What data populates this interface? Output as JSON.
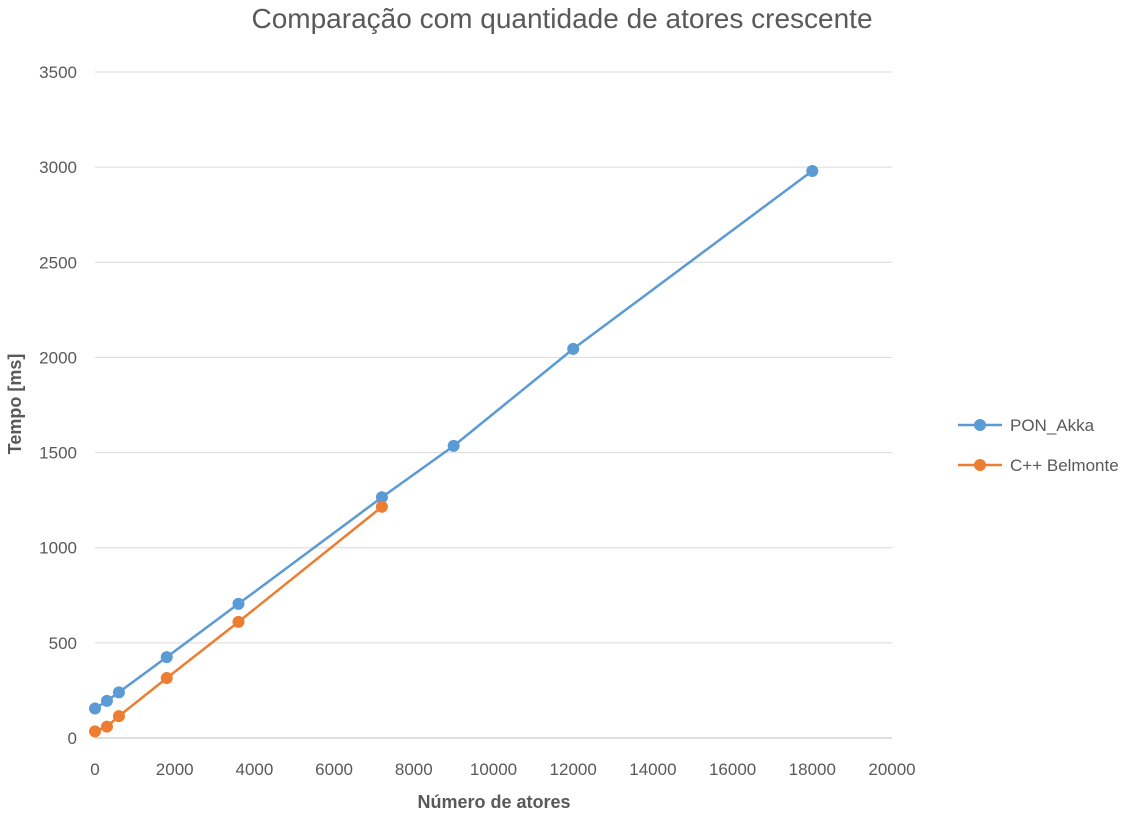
{
  "chart_data": {
    "type": "line",
    "title": "Comparação com quantidade de atores crescente",
    "xlabel": "Número de atores",
    "ylabel": "Tempo [ms]",
    "xlim": [
      0,
      20000
    ],
    "ylim": [
      0,
      3500
    ],
    "x_ticks": [
      "0",
      "2000",
      "4000",
      "6000",
      "8000",
      "10000",
      "12000",
      "14000",
      "16000",
      "18000",
      "20000"
    ],
    "y_ticks": [
      "0",
      "500",
      "1000",
      "1500",
      "2000",
      "2500",
      "3000",
      "3500"
    ],
    "grid": "horizontal",
    "legend_position": "right",
    "series": [
      {
        "name": "PON_Akka",
        "color": "#5b9bd5",
        "points": [
          [
            0,
            155
          ],
          [
            300,
            195
          ],
          [
            600,
            240
          ],
          [
            1800,
            425
          ],
          [
            3600,
            705
          ],
          [
            7200,
            1265
          ],
          [
            9000,
            1535
          ],
          [
            12000,
            2045
          ],
          [
            18000,
            2980
          ]
        ]
      },
      {
        "name": "C++ Belmonte",
        "color": "#ed7d31",
        "points": [
          [
            0,
            35
          ],
          [
            300,
            60
          ],
          [
            600,
            115
          ],
          [
            1800,
            315
          ],
          [
            3600,
            610
          ],
          [
            7200,
            1215
          ]
        ]
      }
    ]
  }
}
